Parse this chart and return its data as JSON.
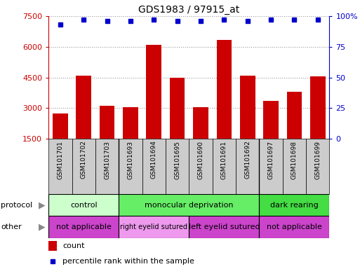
{
  "title": "GDS1983 / 97915_at",
  "samples": [
    "GSM101701",
    "GSM101702",
    "GSM101703",
    "GSM101693",
    "GSM101694",
    "GSM101695",
    "GSM101690",
    "GSM101691",
    "GSM101692",
    "GSM101697",
    "GSM101698",
    "GSM101699"
  ],
  "counts": [
    2750,
    4600,
    3100,
    3050,
    6100,
    4500,
    3050,
    6350,
    4600,
    3350,
    3800,
    4550
  ],
  "percentiles": [
    93,
    97,
    96,
    96,
    97,
    96,
    96,
    97,
    96,
    97,
    97,
    97
  ],
  "bar_color": "#cc0000",
  "dot_color": "#0000cc",
  "ylim_left": [
    1500,
    7500
  ],
  "yticks_left": [
    1500,
    3000,
    4500,
    6000,
    7500
  ],
  "ylim_right": [
    0,
    100
  ],
  "yticks_right": [
    0,
    25,
    50,
    75,
    100
  ],
  "ytick_right_labels": [
    "0",
    "25",
    "50",
    "75",
    "100%"
  ],
  "grid_color": "#999999",
  "protocol_groups": [
    {
      "label": "control",
      "start": 0,
      "end": 3,
      "color": "#ccffcc"
    },
    {
      "label": "monocular deprivation",
      "start": 3,
      "end": 9,
      "color": "#66ee66"
    },
    {
      "label": "dark rearing",
      "start": 9,
      "end": 12,
      "color": "#44dd44"
    }
  ],
  "other_groups": [
    {
      "label": "not applicable",
      "start": 0,
      "end": 3,
      "color": "#cc44cc"
    },
    {
      "label": "right eyelid sutured",
      "start": 3,
      "end": 6,
      "color": "#ee99ee"
    },
    {
      "label": "left eyelid sutured",
      "start": 6,
      "end": 9,
      "color": "#cc44cc"
    },
    {
      "label": "not applicable",
      "start": 9,
      "end": 12,
      "color": "#cc44cc"
    }
  ],
  "legend_count_color": "#cc0000",
  "legend_dot_color": "#0000cc",
  "left_axis_color": "#cc0000",
  "right_axis_color": "#0000cc",
  "sample_box_color": "#cccccc",
  "background_color": "#ffffff"
}
